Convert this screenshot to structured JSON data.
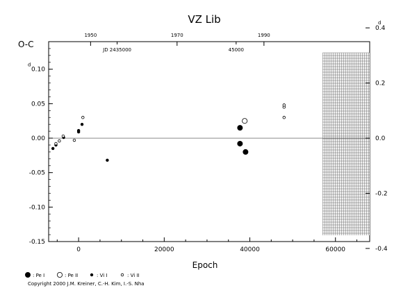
{
  "chart_data": {
    "type": "scatter",
    "title": "VZ  Lib",
    "ylabel": "O-C",
    "xlabel": "Epoch",
    "xlim": [
      -7000,
      68000
    ],
    "ylim": [
      -0.15,
      0.14
    ],
    "x_ticks": [
      {
        "v": 0,
        "label": "0"
      },
      {
        "v": 20000,
        "label": "20000"
      },
      {
        "v": 40000,
        "label": "40000"
      },
      {
        "v": 60000,
        "label": "60000"
      }
    ],
    "y_ticks": [
      {
        "v": 0.1,
        "label": "0.10"
      },
      {
        "v": 0.05,
        "label": "0.05"
      },
      {
        "v": 0.0,
        "label": "0.00"
      },
      {
        "v": -0.05,
        "label": "-0.05"
      },
      {
        "v": -0.1,
        "label": "-0.10"
      },
      {
        "v": -0.15,
        "label": "-0.15"
      }
    ],
    "y_corner_label": "d",
    "right_ticks": [
      {
        "v": 0.4,
        "label": "0.4"
      },
      {
        "v": 0.2,
        "label": "0.2"
      },
      {
        "v": 0.0,
        "label": "0.0"
      },
      {
        "v": -0.2,
        "label": "-0.2"
      },
      {
        "v": -0.4,
        "label": "-0.4"
      }
    ],
    "right_corner_label": "d",
    "right_scale_factor": 2.5,
    "top_year_ticks": [
      {
        "year": "1950",
        "epoch": 2800
      },
      {
        "year": "1970",
        "epoch": 23000
      },
      {
        "year": "1990",
        "epoch": 43300
      }
    ],
    "top_jd_labels": [
      {
        "text": "JD 2435000",
        "epoch": 9000
      },
      {
        "text": "45000",
        "epoch": 36800
      }
    ],
    "shaded_region": {
      "x_from": 57000,
      "x_to": 68000
    },
    "zero_line": 0.0,
    "series": [
      {
        "name": "Pe I",
        "symbol": "filled-large",
        "points": [
          [
            37700,
            0.015
          ],
          [
            37700,
            -0.008
          ],
          [
            39000,
            -0.02
          ]
        ]
      },
      {
        "name": "Pe II",
        "symbol": "open-large",
        "points": [
          [
            38800,
            0.025
          ]
        ]
      },
      {
        "name": "Vi I",
        "symbol": "filled-small",
        "points": [
          [
            -6000,
            -0.015
          ],
          [
            -5300,
            -0.01
          ],
          [
            -3500,
            0.001
          ],
          [
            0,
            0.009
          ],
          [
            0,
            0.011
          ],
          [
            800,
            0.02
          ],
          [
            6700,
            -0.032
          ]
        ]
      },
      {
        "name": "Vi II",
        "symbol": "open-small",
        "points": [
          [
            -5300,
            -0.008
          ],
          [
            -4500,
            -0.004
          ],
          [
            -3600,
            0.003
          ],
          [
            -1000,
            -0.003
          ],
          [
            1000,
            0.03
          ],
          [
            48000,
            0.03
          ],
          [
            48000,
            0.045
          ],
          [
            48000,
            0.048
          ]
        ]
      }
    ],
    "legend": [
      {
        "label": ": Pe I",
        "symbol": "filled-large"
      },
      {
        "label": ": Pe II",
        "symbol": "open-large"
      },
      {
        "label": ": Vi I",
        "symbol": "filled-small"
      },
      {
        "label": ": Vi II",
        "symbol": "open-small"
      }
    ]
  },
  "copyright": "Copyright 2000 J.M. Kreiner, C.-H. Kim, I.-S. Nha"
}
